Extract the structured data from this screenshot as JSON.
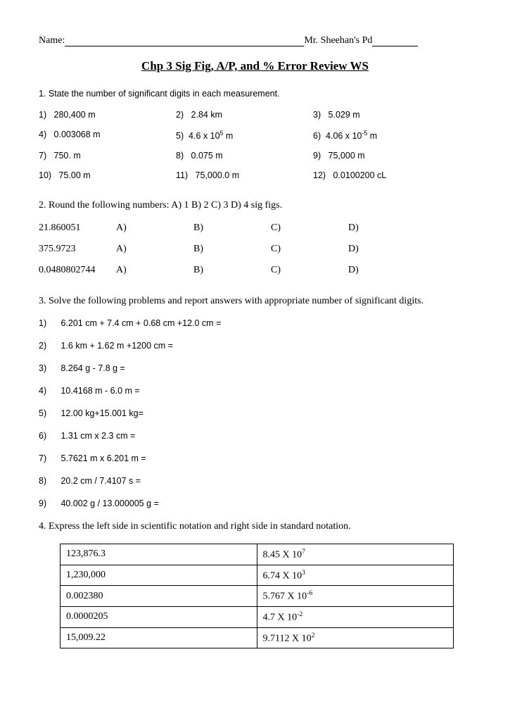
{
  "header": {
    "name_label": "Name:",
    "teacher_label": "Mr. Sheehan's Pd"
  },
  "title": "Chp 3 Sig Fig, A/P, and % Error Review WS",
  "q1": {
    "prompt": "1. State the number of significant digits in each measurement.",
    "items": [
      {
        "n": "1)",
        "v": "280,400 m"
      },
      {
        "n": "2)",
        "v": "2.84 km"
      },
      {
        "n": "3)",
        "v": "5.029 m"
      },
      {
        "n": "4)",
        "v": "0.003068 m"
      },
      {
        "n": "5)",
        "v": "4.6 x 10",
        "sup": "5",
        "tail": " m"
      },
      {
        "n": "6)",
        "v": "4.06 x 10",
        "sup": "-5",
        "tail": " m"
      },
      {
        "n": "7)",
        "v": "750. m"
      },
      {
        "n": "8)",
        "v": "0.075 m"
      },
      {
        "n": "9)",
        "v": "75,000 m"
      },
      {
        "n": "10)",
        "v": "75.00 m"
      },
      {
        "n": "11)",
        "v": "75,000.0 m"
      },
      {
        "n": "12)",
        "v": "0.0100200 cL"
      }
    ]
  },
  "q2": {
    "prompt": "2. Round the following numbers:  A) 1    B) 2     C) 3    D)  4     sig figs.",
    "rows": [
      {
        "val": "21.860051",
        "a": "A)",
        "b": "B)",
        "c": "C)",
        "d": "D)"
      },
      {
        "val": "375.9723",
        "a": "A)",
        "b": "B)",
        "c": "C)",
        "d": "D)"
      },
      {
        "val": "0.0480802744",
        "a": "A)",
        "b": "B)",
        "c": "C)",
        "d": "D)"
      }
    ]
  },
  "q3": {
    "prompt": "3. Solve the following problems and report answers with appropriate number of significant digits.",
    "items": [
      {
        "n": "1)",
        "v": "6.201 cm + 7.4 cm + 0.68 cm +12.0 cm ="
      },
      {
        "n": "2)",
        "v": "1.6 km + 1.62 m +1200 cm ="
      },
      {
        "n": "3)",
        "v": "8.264 g - 7.8 g ="
      },
      {
        "n": "4)",
        "v": "10.4168 m - 6.0 m ="
      },
      {
        "n": "5)",
        "v": "12.00 kg+15.001 kg="
      },
      {
        "n": "6)",
        "v": "1.31 cm x 2.3 cm ="
      },
      {
        "n": "7)",
        "v": "5.7621 m x 6.201 m ="
      },
      {
        "n": "8)",
        "v": "20.2 cm / 7.4107 s ="
      },
      {
        "n": "9)",
        "v": "40.002 g / 13.000005 g ="
      }
    ]
  },
  "q4": {
    "prompt": "4. Express the left side in scientific notation and right side in standard notation.",
    "rows": [
      {
        "l": "123,876.3",
        "r": "8.45 X 10",
        "rsup": "7"
      },
      {
        "l": "1,230,000",
        "r": "6.74 X 10",
        "rsup": "3"
      },
      {
        "l": "0.002380",
        "r": "5.767 X 10",
        "rsup": "-6"
      },
      {
        "l": "0.0000205",
        "r": "4.7 X 10",
        "rsup": "-2"
      },
      {
        "l": "15,009.22",
        "r": "9.7112 X 10",
        "rsup": "2"
      }
    ]
  }
}
